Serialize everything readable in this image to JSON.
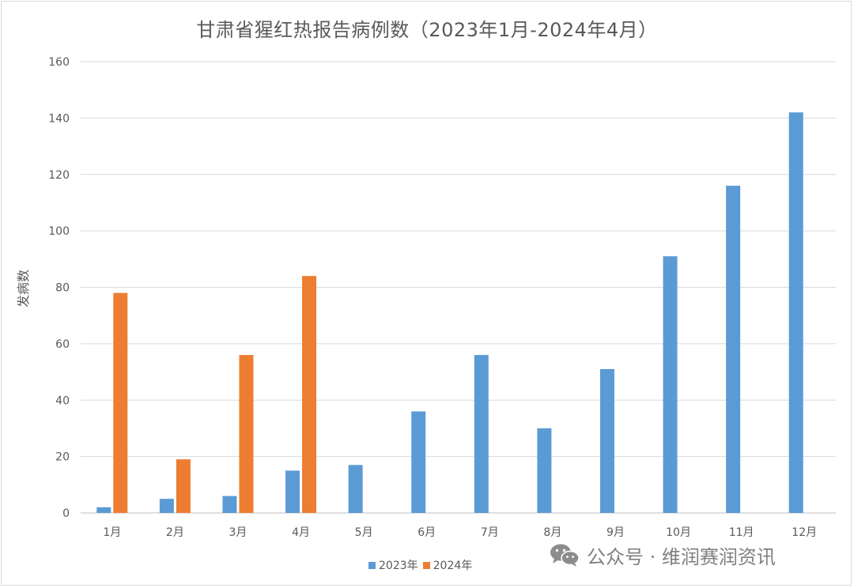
{
  "chart_data": {
    "type": "bar",
    "title": "甘肃省猩红热报告病例数（2023年1月-2024年4月）",
    "xlabel": "",
    "ylabel": "发病数",
    "ylim": [
      0,
      160
    ],
    "yticks": [
      0,
      20,
      40,
      60,
      80,
      100,
      120,
      140,
      160
    ],
    "grid": true,
    "legend_position": "bottom",
    "categories": [
      "1月",
      "2月",
      "3月",
      "4月",
      "5月",
      "6月",
      "7月",
      "8月",
      "9月",
      "10月",
      "11月",
      "12月"
    ],
    "series": [
      {
        "name": "2023年",
        "color": "#5b9bd5",
        "values": [
          2,
          5,
          6,
          15,
          17,
          36,
          56,
          30,
          51,
          91,
          116,
          142
        ]
      },
      {
        "name": "2024年",
        "color": "#ed7d31",
        "values": [
          78,
          19,
          56,
          84,
          null,
          null,
          null,
          null,
          null,
          null,
          null,
          null
        ]
      }
    ]
  },
  "watermark": {
    "text": "公众号 · 维润赛润资讯",
    "icon": "wechat-icon"
  }
}
